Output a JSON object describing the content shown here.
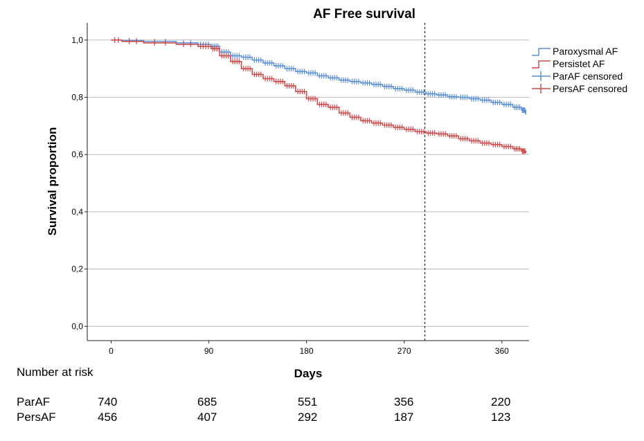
{
  "chart_data": {
    "type": "line",
    "title": "AF Free survival",
    "xlabel": "Days",
    "ylabel": "Survival proportion",
    "xlim": [
      -22,
      385
    ],
    "ylim": [
      -0.05,
      1.06
    ],
    "x_ticks": [
      0,
      90,
      180,
      270,
      360
    ],
    "x_tick_labels": [
      "0",
      "90",
      "180",
      "270",
      "360"
    ],
    "y_ticks": [
      0.0,
      0.2,
      0.4,
      0.6,
      0.8,
      1.0
    ],
    "y_tick_labels": [
      "0,0",
      "0,2",
      "0,4",
      "0,6",
      "0,8",
      "1,0"
    ],
    "grid": "horizontal",
    "reference_line_x": 289,
    "legend_position": "top-right",
    "legend": [
      "Paroxysmal AF",
      "Persistet AF",
      "ParAF censored",
      "PersAF censored"
    ],
    "series": [
      {
        "name": "Paroxysmal AF",
        "censored_name": "ParAF censored",
        "color": "#5b8fd6",
        "x": [
          0,
          10,
          30,
          60,
          80,
          92,
          100,
          110,
          120,
          130,
          140,
          150,
          160,
          170,
          180,
          190,
          200,
          210,
          220,
          230,
          240,
          250,
          260,
          270,
          280,
          290,
          300,
          310,
          320,
          330,
          340,
          350,
          360,
          370,
          378,
          382
        ],
        "y": [
          1.0,
          0.998,
          0.995,
          0.99,
          0.985,
          0.978,
          0.958,
          0.945,
          0.94,
          0.93,
          0.92,
          0.91,
          0.9,
          0.89,
          0.885,
          0.875,
          0.868,
          0.86,
          0.855,
          0.85,
          0.845,
          0.838,
          0.83,
          0.825,
          0.818,
          0.812,
          0.808,
          0.802,
          0.8,
          0.795,
          0.79,
          0.782,
          0.775,
          0.765,
          0.755,
          0.74
        ]
      },
      {
        "name": "Persistet AF",
        "censored_name": "PersAF censored",
        "color": "#d0484a",
        "x": [
          0,
          10,
          30,
          60,
          80,
          92,
          100,
          110,
          120,
          130,
          140,
          150,
          160,
          170,
          180,
          190,
          200,
          210,
          220,
          230,
          240,
          250,
          260,
          270,
          280,
          290,
          300,
          310,
          320,
          330,
          340,
          350,
          360,
          370,
          378,
          382
        ],
        "y": [
          1.0,
          0.995,
          0.99,
          0.985,
          0.978,
          0.97,
          0.945,
          0.925,
          0.9,
          0.88,
          0.865,
          0.855,
          0.84,
          0.82,
          0.795,
          0.775,
          0.765,
          0.745,
          0.73,
          0.718,
          0.71,
          0.703,
          0.695,
          0.688,
          0.68,
          0.675,
          0.672,
          0.665,
          0.655,
          0.648,
          0.64,
          0.635,
          0.628,
          0.62,
          0.612,
          0.605
        ]
      }
    ],
    "number_at_risk": {
      "title": "Number at risk",
      "days": [
        0,
        90,
        180,
        270,
        360
      ],
      "rows": [
        {
          "label": "ParAF",
          "values": [
            "740",
            "685",
            "551",
            "356",
            "220"
          ]
        },
        {
          "label": "PersAF",
          "values": [
            "456",
            "407",
            "292",
            "187",
            "123"
          ]
        }
      ]
    }
  }
}
